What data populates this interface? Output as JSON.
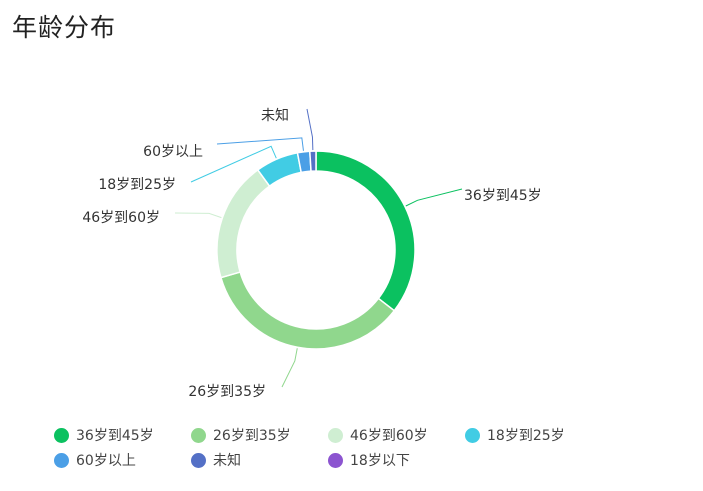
{
  "title": "年龄分布",
  "chart_data": {
    "type": "pie",
    "donut": true,
    "legend_position": "bottom-left",
    "slices": [
      {
        "label": "36岁到45岁",
        "value": 35.5,
        "color": "#0bc160"
      },
      {
        "label": "26岁到35岁",
        "value": 35.0,
        "color": "#90d78d"
      },
      {
        "label": "46岁到60岁",
        "value": 19.5,
        "color": "#cfeed2"
      },
      {
        "label": "18岁到25岁",
        "value": 7.0,
        "color": "#41cce4"
      },
      {
        "label": "60岁以上",
        "value": 2.0,
        "color": "#4b9fe6"
      },
      {
        "label": "未知",
        "value": 1.0,
        "color": "#5470c6"
      },
      {
        "label": "18岁以下",
        "value": 0.0,
        "color": "#8c54d0"
      }
    ]
  }
}
